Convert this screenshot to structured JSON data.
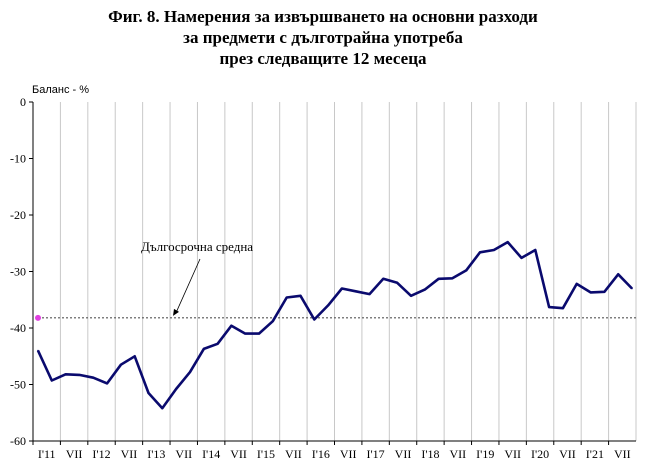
{
  "chart_data": {
    "type": "line",
    "title_lines": [
      "Фиг. 8. Намерения за извършването на основни разходи",
      "за предмети с дълготрайна употреба",
      "през следващите 12 месеца"
    ],
    "ylabel": "Баланс - %",
    "ylim": [
      -60,
      0
    ],
    "yticks": [
      0,
      -10,
      -20,
      -30,
      -40,
      -50,
      -60
    ],
    "xtick_labels": [
      "I'11",
      "VII",
      "I'12",
      "VII",
      "I'13",
      "VII",
      "I'14",
      "VII",
      "I'15",
      "VII",
      "I'16",
      "VII",
      "I'17",
      "VII",
      "I'18",
      "VII",
      "I'19",
      "VII",
      "I'20",
      "VII",
      "I'21",
      "VII"
    ],
    "series": [
      {
        "color": "#0a0a6e",
        "values": [
          -44,
          -49.3,
          -48.2,
          -48.3,
          -48.8,
          -49.8,
          -46.5,
          -45,
          -51.5,
          -54.2,
          -50.8,
          -47.8,
          -43.7,
          -42.8,
          -39.6,
          -41,
          -41,
          -38.8,
          -34.6,
          -34.3,
          -38.5,
          -36,
          -33,
          -33.5,
          -34,
          -31.3,
          -32,
          -34.3,
          -33.2,
          -31.3,
          -31.2,
          -29.8,
          -26.6,
          -26.2,
          -24.8,
          -27.6,
          -26.2,
          -36.3,
          -36.5,
          -32.2,
          -33.7,
          -33.6,
          -30.5,
          -33
        ]
      }
    ],
    "long_term_average": {
      "label": "Дългосрочна средна",
      "value": -38.2,
      "color": "#555555",
      "marker_color": "#e040e0"
    },
    "grid": "vertical",
    "legend": "none"
  }
}
